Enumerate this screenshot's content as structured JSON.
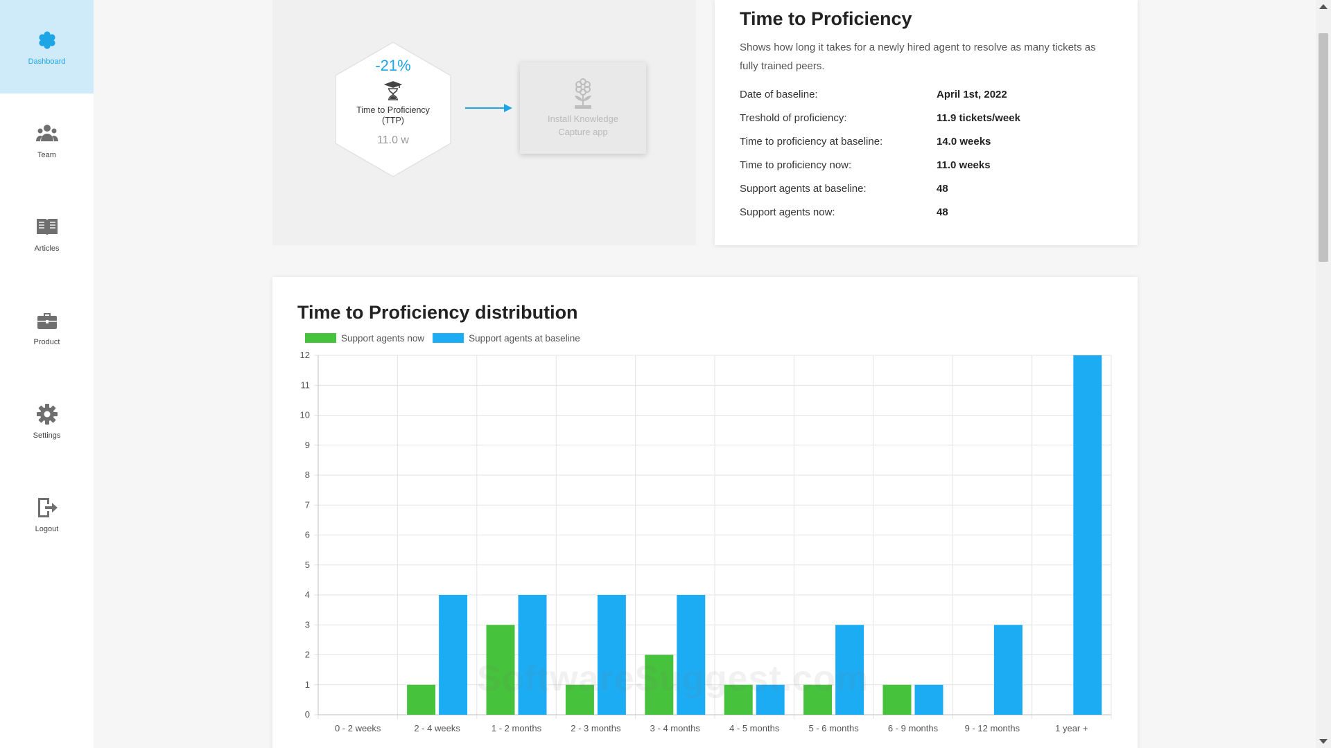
{
  "sidebar": {
    "items": [
      {
        "label": "Dashboard",
        "icon": "dashboard-icon",
        "active": true
      },
      {
        "label": "Team",
        "icon": "team-icon",
        "active": false
      },
      {
        "label": "Articles",
        "icon": "articles-icon",
        "active": false
      },
      {
        "label": "Product",
        "icon": "product-icon",
        "active": false
      },
      {
        "label": "Settings",
        "icon": "settings-icon",
        "active": false
      },
      {
        "label": "Logout",
        "icon": "logout-icon",
        "active": false
      }
    ]
  },
  "workflow": {
    "metric": {
      "change": "-21%",
      "title": "Time to Proficiency (TTP)",
      "value": "11.0 w",
      "icon": "graduate-hourglass-icon"
    },
    "next_step": {
      "label": "Install Knowledge Capture app",
      "icon": "knowledge-plant-icon"
    }
  },
  "info": {
    "title": "Time to Proficiency",
    "description": "Shows how long it takes for a newly hired agent to resolve as many tickets as fully trained peers.",
    "rows": [
      {
        "label": "Date of baseline:",
        "value": "April 1st, 2022"
      },
      {
        "label": "Treshold of proficiency:",
        "value": "11.9 tickets/week"
      },
      {
        "label": "Time to proficiency at baseline:",
        "value": "14.0 weeks"
      },
      {
        "label": "Time to proficiency now:",
        "value": "11.0 weeks"
      },
      {
        "label": "Support agents at baseline:",
        "value": "48"
      },
      {
        "label": "Support agents now:",
        "value": "48"
      }
    ]
  },
  "chart_title": "Time to Proficiency distribution",
  "chart_data": {
    "type": "bar",
    "title": "Time to Proficiency distribution",
    "categories": [
      "0 - 2 weeks",
      "2 - 4 weeks",
      "1 - 2 months",
      "2 - 3 months",
      "3 - 4 months",
      "4 - 5 months",
      "5 - 6 months",
      "6 - 9 months",
      "9 - 12 months",
      "1 year +"
    ],
    "series": [
      {
        "name": "Support agents now",
        "color": "#46c23c",
        "values": [
          0,
          1,
          3,
          1,
          2,
          1,
          1,
          1,
          0,
          0
        ]
      },
      {
        "name": "Support agents at baseline",
        "color": "#1cacf4",
        "values": [
          0,
          4,
          4,
          4,
          4,
          1,
          3,
          1,
          3,
          12
        ]
      }
    ],
    "ylim": [
      0,
      12
    ],
    "yticks": [
      0,
      1,
      2,
      3,
      4,
      5,
      6,
      7,
      8,
      9,
      10,
      11,
      12
    ],
    "grid": true,
    "legend": "top-left",
    "xlabel": "",
    "ylabel": ""
  },
  "watermark": "SoftwareSuggest.com",
  "colors": {
    "accent": "#1ea5e6",
    "active_nav_bg": "#cfeaf9"
  }
}
